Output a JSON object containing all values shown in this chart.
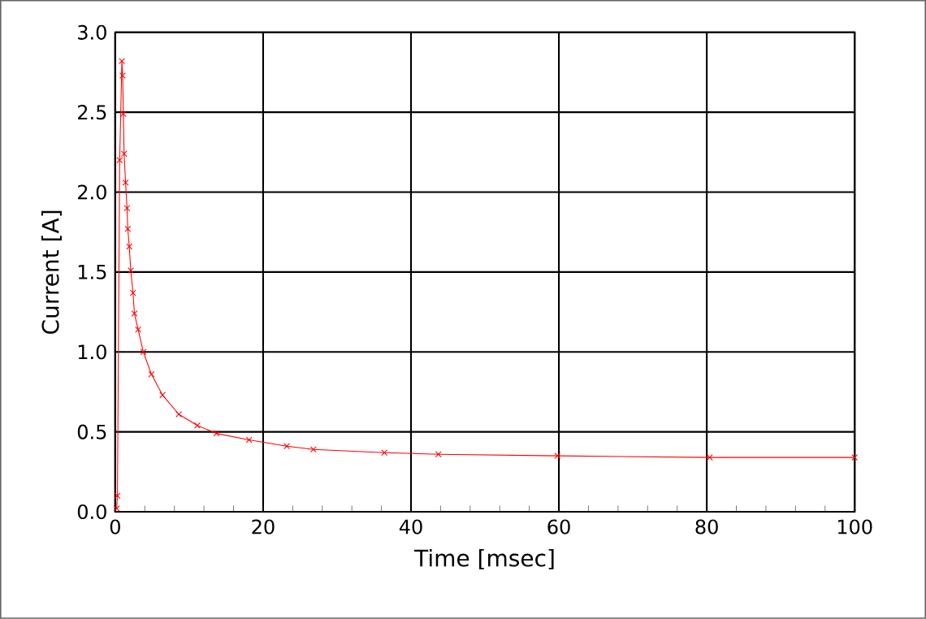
{
  "chart_data": {
    "type": "line",
    "xlabel": "Time [msec]",
    "ylabel": "Current [A]",
    "series": [
      {
        "color": "#ff0000",
        "x": [
          0.2,
          0.3,
          0.6,
          0.9,
          1.0,
          1.1,
          1.2,
          1.4,
          1.6,
          1.7,
          1.9,
          2.1,
          2.4,
          2.6,
          3.1,
          3.8,
          4.9,
          6.4,
          8.6,
          11.1,
          13.7,
          18.1,
          23.2,
          26.8,
          36.4,
          43.7,
          59.8,
          80.4,
          100
        ],
        "values": [
          0.02,
          0.1,
          2.2,
          2.82,
          2.73,
          2.49,
          2.24,
          2.06,
          1.9,
          1.77,
          1.66,
          1.51,
          1.37,
          1.24,
          1.14,
          1.0,
          0.86,
          0.73,
          0.61,
          0.54,
          0.49,
          0.45,
          0.41,
          0.39,
          0.37,
          0.36,
          0.35,
          0.34,
          0.34
        ]
      }
    ],
    "xlim": [
      0,
      100
    ],
    "ylim": [
      0,
      3.0
    ],
    "xticks": [
      0,
      20,
      40,
      60,
      80,
      100
    ],
    "yticks": [
      {
        "value": 0,
        "label": "0.0"
      },
      {
        "value": 0.5,
        "label": "0.5"
      },
      {
        "value": 1,
        "label": "1.0"
      },
      {
        "value": 1.5,
        "label": "1.5"
      },
      {
        "value": 2,
        "label": "2.0"
      },
      {
        "value": 2.5,
        "label": "2.5"
      },
      {
        "value": 3,
        "label": "3.0"
      }
    ],
    "grid": true,
    "marker": "cross",
    "line_style": "solid"
  }
}
